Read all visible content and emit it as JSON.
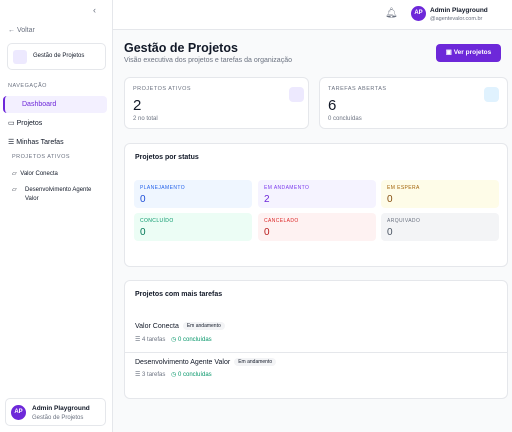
{
  "sidebar": {
    "back": "Voltar",
    "module": "Gestão de Projetos",
    "nav_heading": "NAVEGAÇÃO",
    "nav": [
      "Dashboard",
      "Projetos",
      "Minhas Tarefas"
    ],
    "projects_heading": "PROJETOS ATIVOS",
    "projects": [
      "Valor Conecta",
      "Desenvolvimento Agente Valor"
    ],
    "user": {
      "initials": "AP",
      "name": "Admin Playground",
      "role": "Gestão de Projetos"
    }
  },
  "header": {
    "user": {
      "initials": "AP",
      "name": "Admin Playground",
      "email": "@agentevalor.com.br"
    }
  },
  "page": {
    "title": "Gestão de Projetos",
    "subtitle": "Visão executiva dos projetos e tarefas da organização",
    "button": "Ver projetos"
  },
  "stats": [
    {
      "label": "PROJETOS ATIVOS",
      "value": 2,
      "note": "2 no total"
    },
    {
      "label": "TAREFAS ABERTAS",
      "value": 6,
      "note": "0 concluídas"
    }
  ],
  "status_card": {
    "title": "Projetos por status",
    "items": [
      {
        "label": "PLANEJAMENTO",
        "value": 0
      },
      {
        "label": "EM ANDAMENTO",
        "value": 2
      },
      {
        "label": "EM ESPERA",
        "value": 0
      },
      {
        "label": "CONCLUÍDO",
        "value": 0
      },
      {
        "label": "CANCELADO",
        "value": 0
      },
      {
        "label": "ARQUIVADO",
        "value": 0
      }
    ]
  },
  "top_projects": {
    "title": "Projetos com mais tarefas",
    "items": [
      {
        "name": "Valor Conecta",
        "status": "Em andamento",
        "tasks": "4 tarefas",
        "done": "0 concluídas"
      },
      {
        "name": "Desenvolvimento Agente Valor",
        "status": "Em andamento",
        "tasks": "3 tarefas",
        "done": "0 concluídas"
      }
    ]
  }
}
